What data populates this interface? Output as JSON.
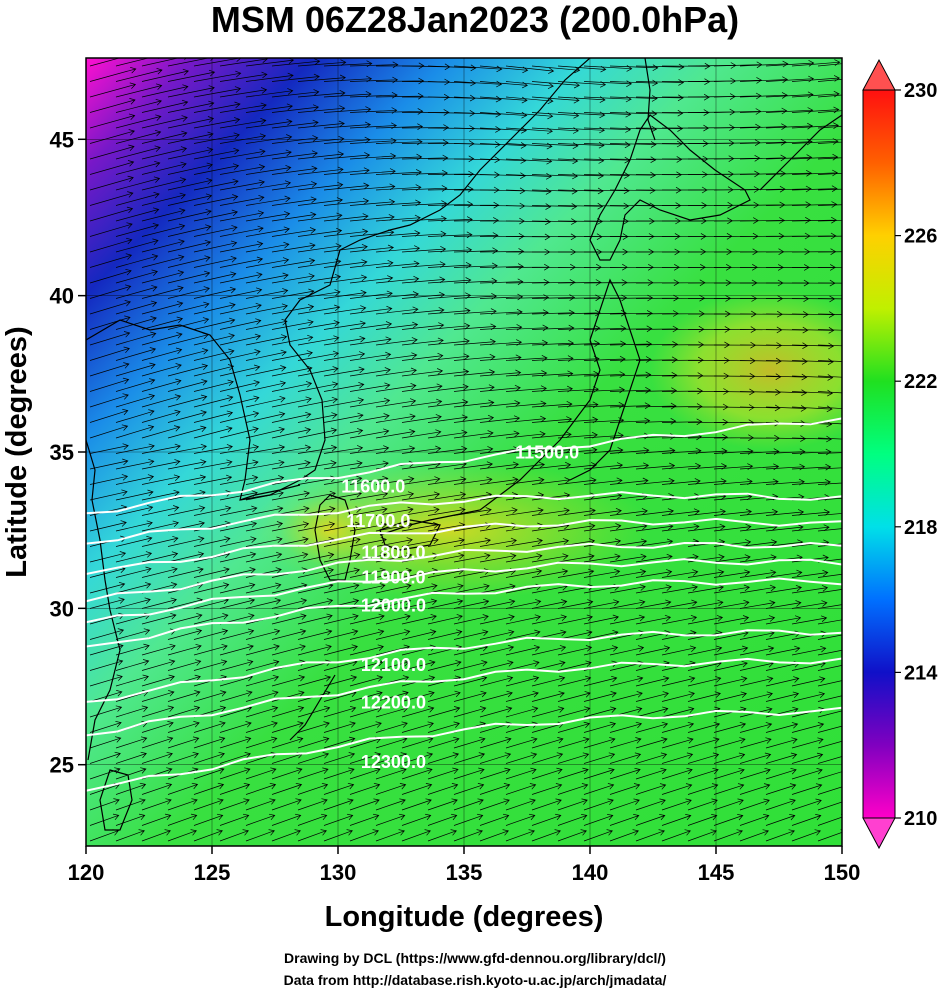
{
  "title": "MSM 06Z28Jan2023 (200.0hPa)",
  "xlabel": "Longitude (degrees)",
  "ylabel": "Latitude  (degrees)",
  "credit_drawing": "Drawing by DCL (https://www.gfd-dennou.org/library/dcl/)",
  "credit_data": "Data from http://database.rish.kyoto-u.ac.jp/arch/jmadata/",
  "map": {
    "lon_range": [
      120,
      150
    ],
    "lat_range": [
      22.4,
      47.6
    ],
    "x_ticks": [
      "120",
      "125",
      "130",
      "135",
      "140",
      "145",
      "150"
    ],
    "y_ticks": [
      "25",
      "30",
      "35",
      "40",
      "45"
    ],
    "field": "temperature",
    "colorbar": {
      "min": 210,
      "max": 230,
      "tick_labels": [
        "210",
        "214",
        "218",
        "222",
        "226",
        "230"
      ],
      "colors": [
        "#ff00c8",
        "#8000c0",
        "#1010c8",
        "#0070ff",
        "#00e0e8",
        "#00ff80",
        "#20e020",
        "#c0f000",
        "#ffd000",
        "#ff6000",
        "#ff1010"
      ]
    },
    "contours": [
      {
        "label": "11500.0",
        "lon": 138.3,
        "lat": 34.8
      },
      {
        "label": "11600.0",
        "lon": 131.4,
        "lat": 33.7
      },
      {
        "label": "11700.0",
        "lon": 131.6,
        "lat": 32.6
      },
      {
        "label": "11800.0",
        "lon": 132.2,
        "lat": 31.6
      },
      {
        "label": "11900.0",
        "lon": 132.2,
        "lat": 30.8
      },
      {
        "label": "12000.0",
        "lon": 132.2,
        "lat": 29.9
      },
      {
        "label": "12100.0",
        "lon": 132.2,
        "lat": 28.0
      },
      {
        "label": "12200.0",
        "lon": 132.2,
        "lat": 26.8
      },
      {
        "label": "12300.0",
        "lon": 132.2,
        "lat": 24.9
      }
    ]
  }
}
